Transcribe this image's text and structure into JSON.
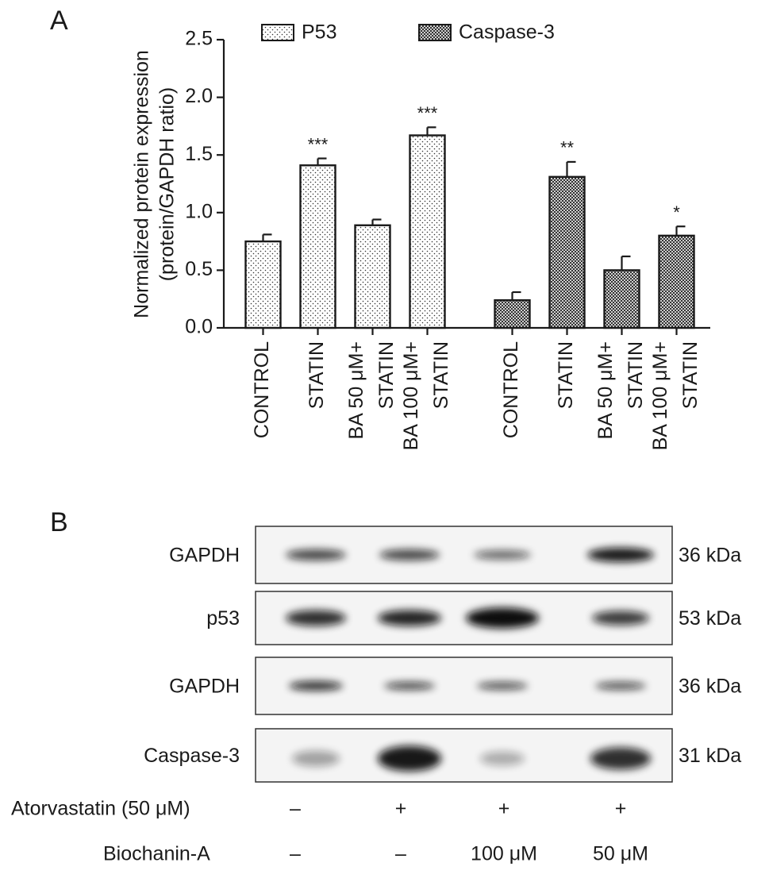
{
  "panel_labels": [
    "A",
    "B"
  ],
  "chart_data": {
    "type": "bar",
    "ylabel": [
      "Normalized protein expression",
      "(protein/GAPDH ratio)"
    ],
    "categories": [
      [
        "CONTROL"
      ],
      [
        "STATIN"
      ],
      [
        "BA 50 μM+",
        "STATIN"
      ],
      [
        "BA 100 μM+",
        "STATIN"
      ]
    ],
    "series": [
      {
        "name": "P53",
        "color": "#333333",
        "pattern": "dots",
        "values": [
          0.75,
          1.41,
          0.89,
          1.67
        ],
        "errors": [
          0.06,
          0.06,
          0.05,
          0.07
        ],
        "annotations": [
          null,
          "***",
          null,
          "***"
        ]
      },
      {
        "name": "Caspase-3",
        "color": "#333333",
        "pattern": "checker",
        "values": [
          0.24,
          1.31,
          0.5,
          0.8
        ],
        "errors": [
          0.07,
          0.13,
          0.12,
          0.08
        ],
        "annotations": [
          null,
          "**",
          null,
          "*"
        ]
      }
    ],
    "ylim": [
      0,
      2.5
    ],
    "yticks": [
      {
        "value": 0,
        "label": "0.0"
      },
      0.5,
      {
        "value": 1,
        "label": "1.0"
      },
      1.5,
      {
        "value": 2,
        "label": "2.0"
      },
      2.5
    ],
    "legend": "top"
  },
  "blot": {
    "rows": [
      {
        "label": "GAPDH",
        "size": "36 kDa"
      },
      {
        "label": "p53",
        "size": "53 kDa"
      },
      {
        "label": "GAPDH",
        "size": "36 kDa"
      },
      {
        "label": "Caspase-3",
        "size": "31 kDa"
      }
    ],
    "treatments": [
      {
        "label": "Atorvastatin (50 μM)",
        "lanes": [
          "–",
          "+",
          "+",
          "+"
        ]
      },
      {
        "label": "Biochanin-A",
        "lanes": [
          "–",
          "–",
          "100 μM",
          "50 μM"
        ]
      }
    ]
  }
}
